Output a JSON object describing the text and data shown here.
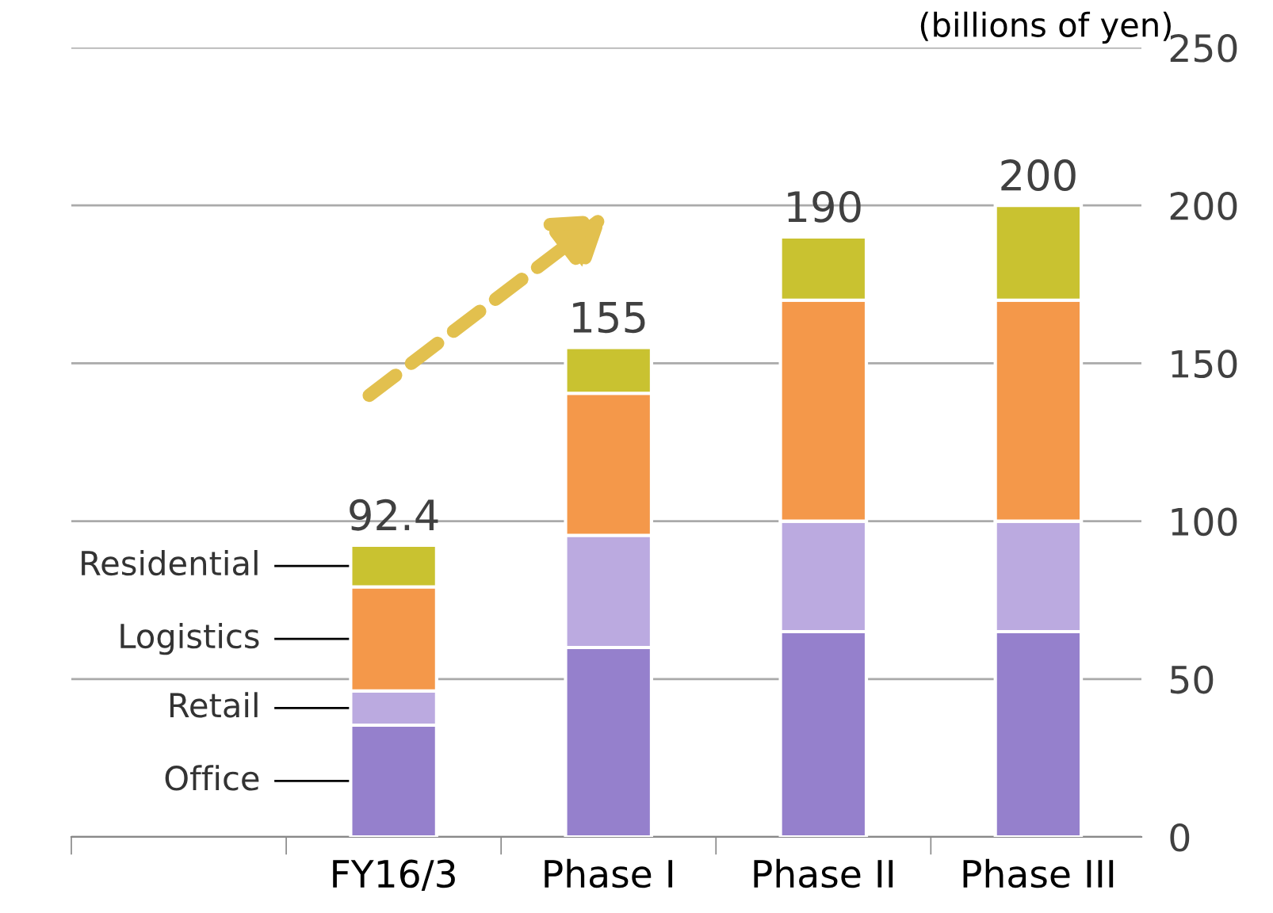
{
  "chart_data": {
    "type": "bar",
    "stacked": true,
    "ylabel": "(billions of yen)",
    "categories": [
      "FY16/3",
      "Phase I",
      "Phase II",
      "Phase III"
    ],
    "series": [
      {
        "name": "Office",
        "color": "#9580cc",
        "values": [
          35.4,
          60,
          65,
          65
        ]
      },
      {
        "name": "Retail",
        "color": "#bbaae0",
        "values": [
          10.8,
          35.5,
          35,
          35
        ]
      },
      {
        "name": "Logistics",
        "color": "#f4984a",
        "values": [
          33,
          45,
          70,
          70
        ]
      },
      {
        "name": "Residential",
        "color": "#c9c230",
        "values": [
          13.2,
          14.5,
          20,
          30
        ]
      }
    ],
    "totals": [
      "92.4",
      "155",
      "190",
      "200"
    ],
    "ylim": [
      0,
      250
    ],
    "yticks": [
      0,
      50,
      100,
      150,
      200,
      250
    ],
    "grid": "y"
  }
}
